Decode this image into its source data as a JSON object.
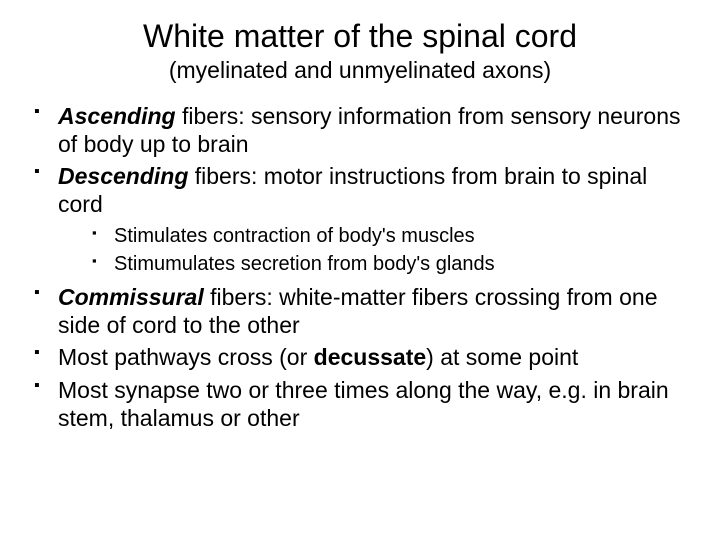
{
  "title": "White matter of the spinal cord",
  "subtitle": "(myelinated and unmyelinated axons)",
  "bullets": [
    {
      "term": "Ascending",
      "rest": " fibers:  sensory information from sensory neurons of body up to brain"
    },
    {
      "term": "Descending",
      "rest": " fibers:  motor instructions from brain to spinal cord"
    }
  ],
  "subbullets": [
    "Stimulates contraction of body's muscles",
    "Stimumulates secretion from body's glands"
  ],
  "bullets2": [
    {
      "term": "Commissural",
      "rest": " fibers: white-matter fibers crossing from one side of cord to the other"
    }
  ],
  "plain": {
    "p1a": "Most pathways cross (or ",
    "p1b": "decussate",
    "p1c": ") at some point",
    "p2": "Most synapse two or three times along the way, e.g. in brain stem, thalamus or other"
  },
  "colors": {
    "bg": "#ffffff",
    "text": "#000000"
  },
  "fonts": {
    "title_pt": 32,
    "subtitle_pt": 23,
    "body_pt": 23,
    "sub_pt": 20
  }
}
